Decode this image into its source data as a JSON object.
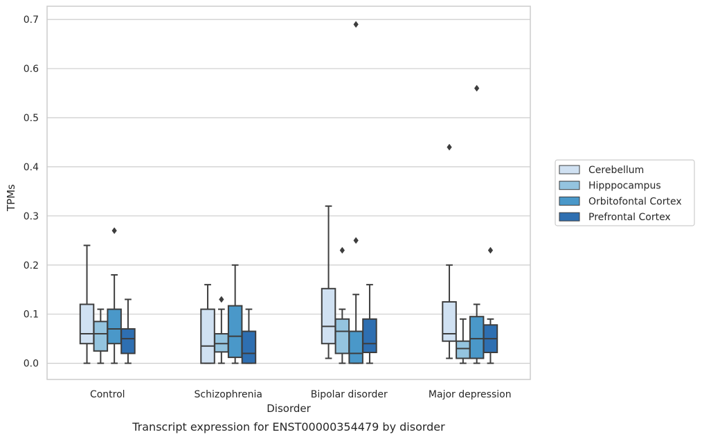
{
  "chart_data": {
    "type": "box",
    "title": "",
    "caption": "Transcript expression for ENST00000354479 by disorder",
    "xlabel": "Disorder",
    "ylabel": "TPMs",
    "ylim": [
      -0.033,
      0.727
    ],
    "yticks": [
      "0.0",
      "0.1",
      "0.2",
      "0.3",
      "0.4",
      "0.5",
      "0.6",
      "0.7"
    ],
    "grid": "horizontal",
    "legend_position": "right",
    "categories": [
      "Control",
      "Schizophrenia",
      "Bipolar disorder",
      "Major depression"
    ],
    "series": [
      {
        "name": "Cerebellum",
        "color": "#d0e1f2",
        "boxes": [
          {
            "whisker_low": 0.0,
            "q1": 0.04,
            "median": 0.06,
            "q3": 0.12,
            "whisker_high": 0.24,
            "outliers": []
          },
          {
            "whisker_low": 0.0,
            "q1": 0.0,
            "median": 0.035,
            "q3": 0.11,
            "whisker_high": 0.16,
            "outliers": []
          },
          {
            "whisker_low": 0.01,
            "q1": 0.04,
            "median": 0.075,
            "q3": 0.152,
            "whisker_high": 0.32,
            "outliers": []
          },
          {
            "whisker_low": 0.01,
            "q1": 0.045,
            "median": 0.06,
            "q3": 0.125,
            "whisker_high": 0.2,
            "outliers": [
              0.44
            ]
          }
        ]
      },
      {
        "name": "Hipppocampus",
        "color": "#94c4df",
        "boxes": [
          {
            "whisker_low": 0.0,
            "q1": 0.025,
            "median": 0.06,
            "q3": 0.085,
            "whisker_high": 0.11,
            "outliers": []
          },
          {
            "whisker_low": 0.0,
            "q1": 0.023,
            "median": 0.04,
            "q3": 0.06,
            "whisker_high": 0.11,
            "outliers": [
              0.13
            ]
          },
          {
            "whisker_low": 0.0,
            "q1": 0.02,
            "median": 0.065,
            "q3": 0.09,
            "whisker_high": 0.11,
            "outliers": [
              0.23
            ]
          },
          {
            "whisker_low": 0.0,
            "q1": 0.01,
            "median": 0.03,
            "q3": 0.045,
            "whisker_high": 0.09,
            "outliers": []
          }
        ]
      },
      {
        "name": "Orbitofontal Cortex",
        "color": "#4a98c9",
        "boxes": [
          {
            "whisker_low": 0.0,
            "q1": 0.04,
            "median": 0.07,
            "q3": 0.11,
            "whisker_high": 0.18,
            "outliers": [
              0.27
            ]
          },
          {
            "whisker_low": 0.0,
            "q1": 0.012,
            "median": 0.055,
            "q3": 0.117,
            "whisker_high": 0.2,
            "outliers": []
          },
          {
            "whisker_low": 0.0,
            "q1": 0.0,
            "median": 0.02,
            "q3": 0.065,
            "whisker_high": 0.14,
            "outliers": [
              0.25,
              0.69
            ]
          },
          {
            "whisker_low": 0.0,
            "q1": 0.01,
            "median": 0.05,
            "q3": 0.095,
            "whisker_high": 0.12,
            "outliers": [
              0.56
            ]
          }
        ]
      },
      {
        "name": "Prefrontal Cortex",
        "color": "#2e6fb1",
        "boxes": [
          {
            "whisker_low": 0.0,
            "q1": 0.02,
            "median": 0.05,
            "q3": 0.07,
            "whisker_high": 0.13,
            "outliers": []
          },
          {
            "whisker_low": 0.0,
            "q1": 0.0,
            "median": 0.02,
            "q3": 0.065,
            "whisker_high": 0.11,
            "outliers": []
          },
          {
            "whisker_low": 0.0,
            "q1": 0.022,
            "median": 0.04,
            "q3": 0.09,
            "whisker_high": 0.16,
            "outliers": []
          },
          {
            "whisker_low": 0.0,
            "q1": 0.022,
            "median": 0.05,
            "q3": 0.078,
            "whisker_high": 0.09,
            "outliers": [
              0.23
            ]
          }
        ]
      }
    ]
  }
}
